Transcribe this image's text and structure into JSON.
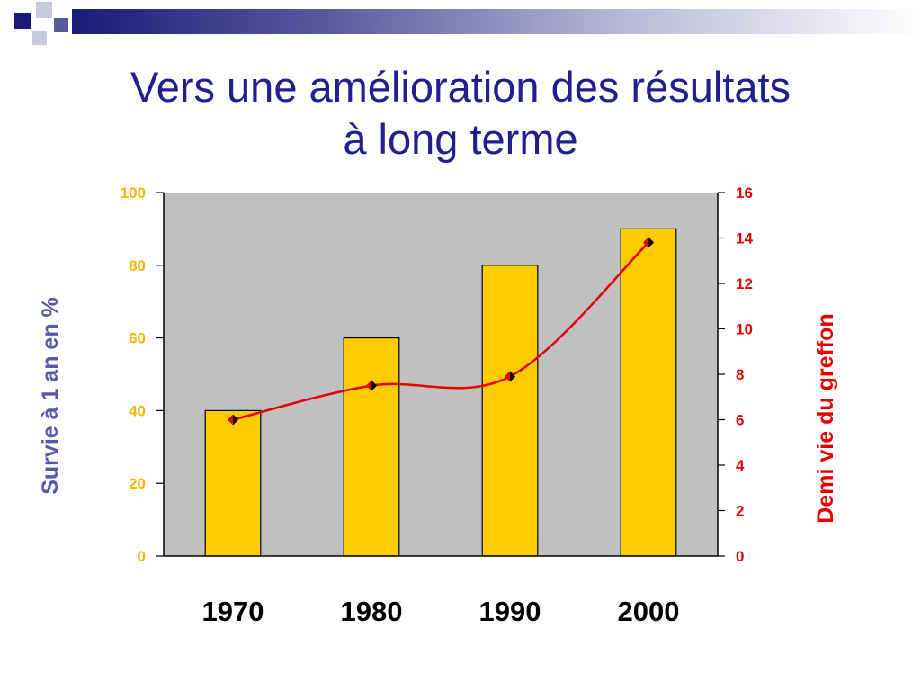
{
  "slide": {
    "title_line1": "Vers une amélioration des résultats",
    "title_line2": "à long terme"
  },
  "colors": {
    "title": "#1f1f8f",
    "bars": "#ffcc00",
    "plot_background": "#c0c0c0",
    "line": "#e60000",
    "left_axis_ticks": "#f5b800",
    "left_axis_label": "#5858a8",
    "right_axis": "#e60000"
  },
  "chart_data": {
    "type": "bar",
    "categories": [
      "1970",
      "1980",
      "1990",
      "2000"
    ],
    "series": [
      {
        "kind": "bar",
        "axis": "left",
        "values": [
          40,
          60,
          80,
          90
        ]
      },
      {
        "kind": "line",
        "axis": "right",
        "marker": "diamond",
        "values": [
          6,
          7.5,
          7.9,
          13.8
        ]
      }
    ],
    "ylabel": "Survie à 1 an en %",
    "ylabel_right": "Demi vie du greffon",
    "ylim": [
      0,
      100
    ],
    "yticks": [
      0,
      20,
      40,
      60,
      80,
      100
    ],
    "ylim_right": [
      0,
      16
    ],
    "yticks_right": [
      0,
      2,
      4,
      6,
      8,
      10,
      12,
      14,
      16
    ],
    "grid": false,
    "legend": "none"
  }
}
